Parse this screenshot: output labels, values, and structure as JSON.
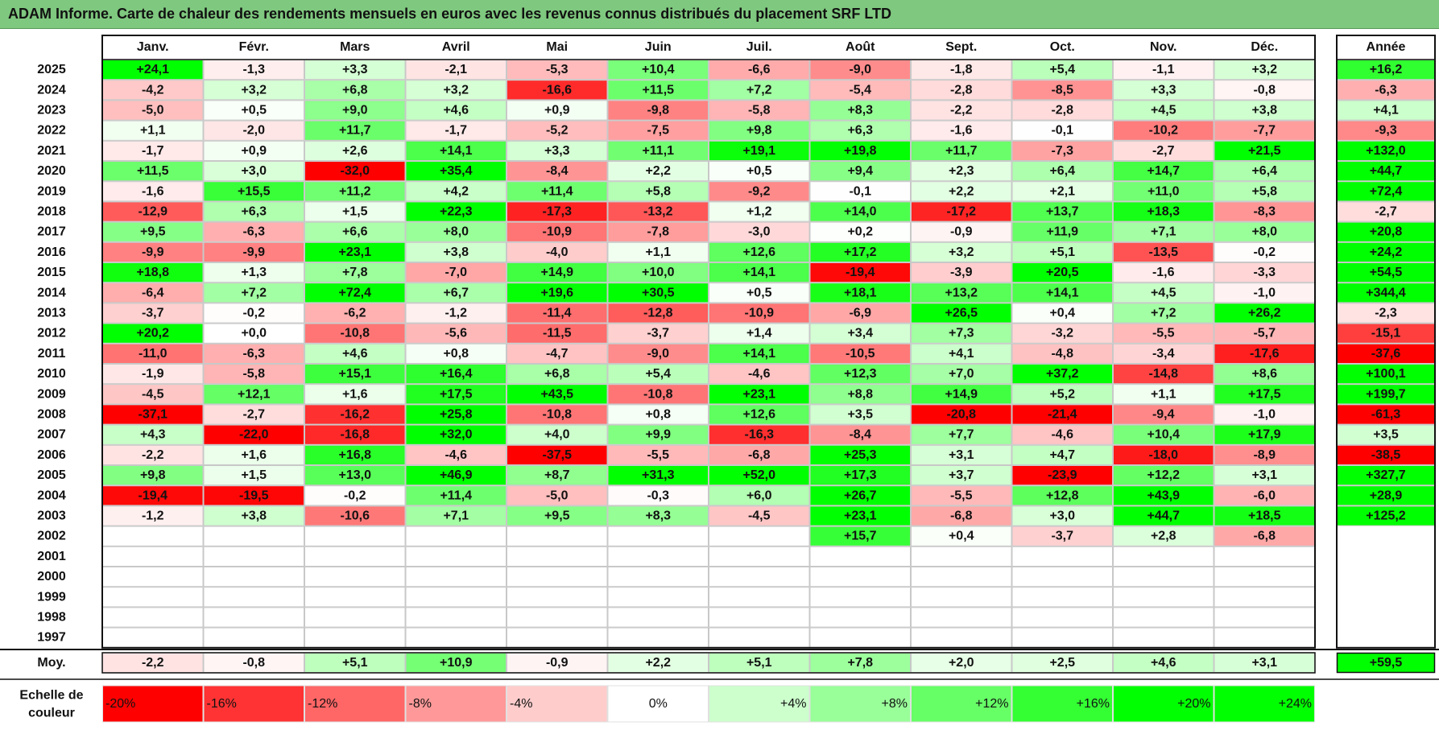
{
  "title": "ADAM Informe. Carte de chaleur des rendements mensuels en euros avec les revenus connus distribués du placement SRF LTD",
  "chart_data": {
    "type": "heatmap",
    "title": "ADAM Informe. Carte de chaleur des rendements mensuels en euros avec les revenus connus distribués du placement SRF LTD",
    "months": [
      "Janv.",
      "Févr.",
      "Mars",
      "Avril",
      "Mai",
      "Juin",
      "Juil.",
      "Août",
      "Sept.",
      "Oct.",
      "Nov.",
      "Déc."
    ],
    "annual_header": "Année",
    "years": [
      "2025",
      "2024",
      "2023",
      "2022",
      "2021",
      "2020",
      "2019",
      "2018",
      "2017",
      "2016",
      "2015",
      "2014",
      "2013",
      "2012",
      "2011",
      "2010",
      "2009",
      "2008",
      "2007",
      "2006",
      "2005",
      "2004",
      "2003",
      "2002",
      "2001",
      "2000",
      "1999",
      "1998",
      "1997"
    ],
    "values": [
      [
        24.1,
        -1.3,
        3.3,
        -2.1,
        -5.3,
        10.4,
        -6.6,
        -9.0,
        -1.8,
        5.4,
        -1.1,
        3.2
      ],
      [
        -4.2,
        3.2,
        6.8,
        3.2,
        -16.6,
        11.5,
        7.2,
        -5.4,
        -2.8,
        -8.5,
        3.3,
        -0.8
      ],
      [
        -5.0,
        0.5,
        9.0,
        4.6,
        0.9,
        -9.8,
        -5.8,
        8.3,
        -2.2,
        -2.8,
        4.5,
        3.8
      ],
      [
        1.1,
        -2.0,
        11.7,
        -1.7,
        -5.2,
        -7.5,
        9.8,
        6.3,
        -1.6,
        -0.1,
        -10.2,
        -7.7
      ],
      [
        -1.7,
        0.9,
        2.6,
        14.1,
        3.3,
        11.1,
        19.1,
        19.8,
        11.7,
        -7.3,
        -2.7,
        21.5
      ],
      [
        11.5,
        3.0,
        -32.0,
        35.4,
        -8.4,
        2.2,
        0.5,
        9.4,
        2.3,
        6.4,
        14.7,
        6.4
      ],
      [
        -1.6,
        15.5,
        11.2,
        4.2,
        11.4,
        5.8,
        -9.2,
        -0.1,
        2.2,
        2.1,
        11.0,
        5.8
      ],
      [
        -12.9,
        6.3,
        1.5,
        22.3,
        -17.3,
        -13.2,
        1.2,
        14.0,
        -17.2,
        13.7,
        18.3,
        -8.3
      ],
      [
        9.5,
        -6.3,
        6.6,
        8.0,
        -10.9,
        -7.8,
        -3.0,
        0.2,
        -0.9,
        11.9,
        7.1,
        8.0
      ],
      [
        -9.9,
        -9.9,
        23.1,
        3.8,
        -4.0,
        1.1,
        12.6,
        17.2,
        3.2,
        5.1,
        -13.5,
        -0.2
      ],
      [
        18.8,
        1.3,
        7.8,
        -7.0,
        14.9,
        10.0,
        14.1,
        -19.4,
        -3.9,
        20.5,
        -1.6,
        -3.3
      ],
      [
        -6.4,
        7.2,
        72.4,
        6.7,
        19.6,
        30.5,
        0.5,
        18.1,
        13.2,
        14.1,
        4.5,
        -1.0
      ],
      [
        -3.7,
        -0.2,
        -6.2,
        -1.2,
        -11.4,
        -12.8,
        -10.9,
        -6.9,
        26.5,
        0.4,
        7.2,
        26.2
      ],
      [
        20.2,
        0.0,
        -10.8,
        -5.6,
        -11.5,
        -3.7,
        1.4,
        3.4,
        7.3,
        -3.2,
        -5.5,
        -5.7
      ],
      [
        -11.0,
        -6.3,
        4.6,
        0.8,
        -4.7,
        -9.0,
        14.1,
        -10.5,
        4.1,
        -4.8,
        -3.4,
        -17.6
      ],
      [
        -1.9,
        -5.8,
        15.1,
        16.4,
        6.8,
        5.4,
        -4.6,
        12.3,
        7.0,
        37.2,
        -14.8,
        8.6
      ],
      [
        -4.5,
        12.1,
        1.6,
        17.5,
        43.5,
        -10.8,
        23.1,
        8.8,
        14.9,
        5.2,
        1.1,
        17.5
      ],
      [
        -37.1,
        -2.7,
        -16.2,
        25.8,
        -10.8,
        0.8,
        12.6,
        3.5,
        -20.8,
        -21.4,
        -9.4,
        -1.0
      ],
      [
        4.3,
        -22.0,
        -16.8,
        32.0,
        4.0,
        9.9,
        -16.3,
        -8.4,
        7.7,
        -4.6,
        10.4,
        17.9
      ],
      [
        -2.2,
        1.6,
        16.8,
        -4.6,
        -37.5,
        -5.5,
        -6.8,
        25.3,
        3.1,
        4.7,
        -18.0,
        -8.9
      ],
      [
        9.8,
        1.5,
        13.0,
        46.9,
        8.7,
        31.3,
        52.0,
        17.3,
        3.7,
        -23.9,
        12.2,
        3.1
      ],
      [
        -19.4,
        -19.5,
        -0.2,
        11.4,
        -5.0,
        -0.3,
        6.0,
        26.7,
        -5.5,
        12.8,
        43.9,
        -6.0
      ],
      [
        -1.2,
        3.8,
        -10.6,
        7.1,
        9.5,
        8.3,
        -4.5,
        23.1,
        -6.8,
        3.0,
        44.7,
        18.5
      ],
      [
        null,
        null,
        null,
        null,
        null,
        null,
        null,
        15.7,
        0.4,
        -3.7,
        2.8,
        -6.8
      ],
      [
        null,
        null,
        null,
        null,
        null,
        null,
        null,
        null,
        null,
        null,
        null,
        null
      ],
      [
        null,
        null,
        null,
        null,
        null,
        null,
        null,
        null,
        null,
        null,
        null,
        null
      ],
      [
        null,
        null,
        null,
        null,
        null,
        null,
        null,
        null,
        null,
        null,
        null,
        null
      ],
      [
        null,
        null,
        null,
        null,
        null,
        null,
        null,
        null,
        null,
        null,
        null,
        null
      ],
      [
        null,
        null,
        null,
        null,
        null,
        null,
        null,
        null,
        null,
        null,
        null,
        null
      ]
    ],
    "annual": [
      16.2,
      -6.3,
      4.1,
      -9.3,
      132.0,
      44.7,
      72.4,
      -2.7,
      20.8,
      24.2,
      54.5,
      344.4,
      -2.3,
      -15.1,
      -37.6,
      100.1,
      199.7,
      -61.3,
      3.5,
      -38.5,
      327.7,
      28.9,
      125.2,
      null,
      null,
      null,
      null,
      null,
      null
    ],
    "average_label": "Moy.",
    "averages": [
      -2.2,
      -0.8,
      5.1,
      10.9,
      -0.9,
      2.2,
      5.1,
      7.8,
      2.0,
      2.5,
      4.6,
      3.1
    ],
    "average_annual": 59.5,
    "scale_label": [
      "Echelle de",
      "couleur"
    ],
    "scale": [
      {
        "label": "-20%",
        "value": -20,
        "color": "#ff0000"
      },
      {
        "label": "-16%",
        "value": -16,
        "color": "#ff3333"
      },
      {
        "label": "-12%",
        "value": -12,
        "color": "#ff6666"
      },
      {
        "label": "-8%",
        "value": -8,
        "color": "#ff9999"
      },
      {
        "label": "-4%",
        "value": -4,
        "color": "#ffcccc"
      },
      {
        "label": "0%",
        "value": 0,
        "color": "#ffffff"
      },
      {
        "label": "+4%",
        "value": 4,
        "color": "#ccffcc"
      },
      {
        "label": "+8%",
        "value": 8,
        "color": "#99ff99"
      },
      {
        "label": "+12%",
        "value": 12,
        "color": "#66ff66"
      },
      {
        "label": "+16%",
        "value": 16,
        "color": "#33ff33"
      },
      {
        "label": "+20%",
        "value": 20,
        "color": "#00ff00"
      },
      {
        "label": "+24%",
        "value": 24,
        "color": "#00ff00"
      }
    ]
  },
  "colors": {
    "title_bar": "#7fc87f",
    "max_positive": "#00ff00",
    "max_negative": "#ff0000",
    "neutral": "#ffffff"
  }
}
